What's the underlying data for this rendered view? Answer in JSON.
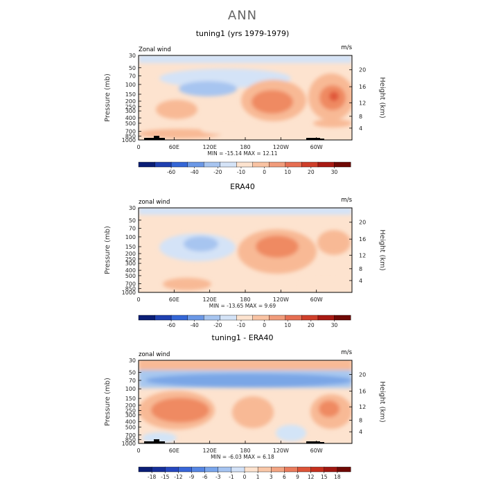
{
  "page": {
    "title": "ANN"
  },
  "colors": {
    "bg": "#ffffff",
    "neg_light": "#d3e4f7",
    "neg_med": "#a8c8ef",
    "neg_strong": "#7aa6e6",
    "neg_deep": "#4d7fdc",
    "pos_light": "#fde3cf",
    "pos_med": "#f8b995",
    "pos_strong": "#ef8a62",
    "pos_deep": "#e0583a"
  },
  "chart_data": [
    {
      "type": "heatmap",
      "title": "tuning1 (yrs 1979-1979)",
      "corner_left": "Zonal wind",
      "corner_right": "m/s",
      "ylabel": "Pressure (mb)",
      "y2label": "Height (km)",
      "pressure_ticks": [
        "30",
        "50",
        "70",
        "100",
        "150",
        "200",
        "250",
        "300",
        "400",
        "500",
        "700",
        "850",
        "1000"
      ],
      "height_ticks": [
        "20",
        "16",
        "12",
        "8",
        "4"
      ],
      "x_ticks": [
        "0",
        "60E",
        "120E",
        "180",
        "120W",
        "60W"
      ],
      "stats": "MIN = -15.14   MAX =  12.11",
      "colorbar_labels": [
        "-60",
        "-40",
        "-20",
        "-10",
        "0",
        "10",
        "20",
        "30"
      ]
    },
    {
      "type": "heatmap",
      "title": "ERA40",
      "corner_left": "zonal wind",
      "corner_right": "m/s",
      "ylabel": "Pressure (mb)",
      "y2label": "Height (km)",
      "pressure_ticks": [
        "30",
        "50",
        "70",
        "100",
        "150",
        "200",
        "250",
        "300",
        "400",
        "500",
        "700",
        "850",
        "1000"
      ],
      "height_ticks": [
        "20",
        "16",
        "12",
        "8",
        "4"
      ],
      "x_ticks": [
        "0",
        "60E",
        "120E",
        "180",
        "120W",
        "60W"
      ],
      "stats": "MIN = -13.65   MAX =   9.69",
      "colorbar_labels": [
        "-60",
        "-40",
        "-20",
        "-10",
        "0",
        "10",
        "20",
        "30"
      ]
    },
    {
      "type": "heatmap",
      "title": "tuning1 - ERA40",
      "corner_left": "zonal wind",
      "corner_right": "m/s",
      "ylabel": "Pressure (mb)",
      "y2label": "Height (km)",
      "pressure_ticks": [
        "30",
        "50",
        "70",
        "100",
        "150",
        "200",
        "250",
        "300",
        "400",
        "500",
        "700",
        "850",
        "1000"
      ],
      "height_ticks": [
        "20",
        "16",
        "12",
        "8",
        "4"
      ],
      "x_ticks": [
        "0",
        "60E",
        "120E",
        "180",
        "120W",
        "60W"
      ],
      "stats": "MIN =  -6.03   MAX =   6.18",
      "colorbar_labels": [
        "-18",
        "-15",
        "-12",
        "-9",
        "-6",
        "-3",
        "-1",
        "0",
        "1",
        "3",
        "6",
        "9",
        "12",
        "15",
        "18"
      ]
    }
  ]
}
